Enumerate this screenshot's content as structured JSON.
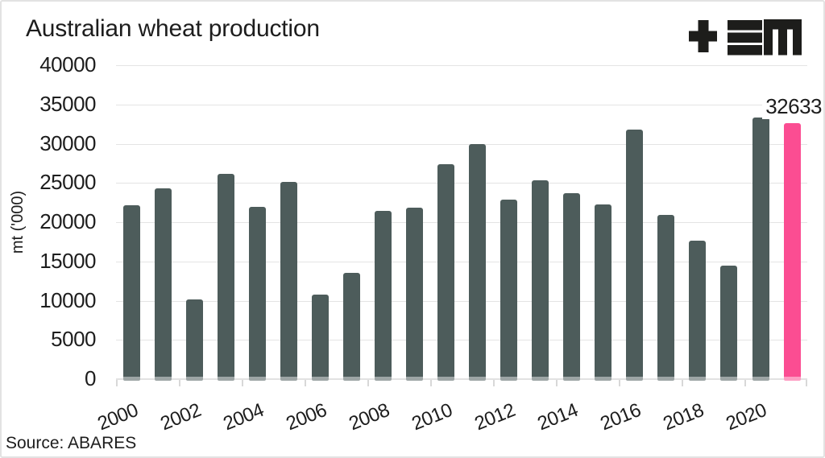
{
  "page": {
    "title": "Australian wheat production",
    "source_note": "Source: ABARES",
    "logo_name": "tem-logo"
  },
  "chart_data": {
    "type": "bar",
    "title": "Australian wheat production",
    "xlabel": "",
    "ylabel": "mt ('000)",
    "ylim": [
      0,
      40000
    ],
    "ytick_step": 5000,
    "ytick_labels": [
      "40000",
      "35000",
      "30000",
      "25000",
      "20000",
      "15000",
      "10000",
      "5000",
      "0"
    ],
    "categories": [
      2000,
      2001,
      2002,
      2003,
      2004,
      2005,
      2006,
      2007,
      2008,
      2009,
      2010,
      2011,
      2012,
      2013,
      2014,
      2015,
      2016,
      2017,
      2018,
      2019,
      2020,
      2021
    ],
    "values": [
      22108,
      24299,
      10132,
      26132,
      21905,
      25173,
      10822,
      13569,
      21420,
      21834,
      27410,
      29905,
      22856,
      25303,
      23743,
      22275,
      31819,
      20941,
      17598,
      14480,
      33343,
      32633
    ],
    "xtick_labels": [
      "2000",
      "2002",
      "2004",
      "2006",
      "2008",
      "2010",
      "2012",
      "2014",
      "2016",
      "2018",
      "2020"
    ],
    "grid": "horizontal",
    "legend": "none",
    "bar_color": "#4D5C5B",
    "highlight_index": 21,
    "highlight_color": "#FB4D92",
    "annotation": {
      "text": "32633"
    },
    "source": "Source: ABARES"
  },
  "colors": {
    "text": "#1D1D1D",
    "gridline": "#E4E4E4",
    "axis_line": "#E2E2E2",
    "tick": "#D8D8D8",
    "logo": "#1D1D1B",
    "background": "#FFFFFF"
  }
}
